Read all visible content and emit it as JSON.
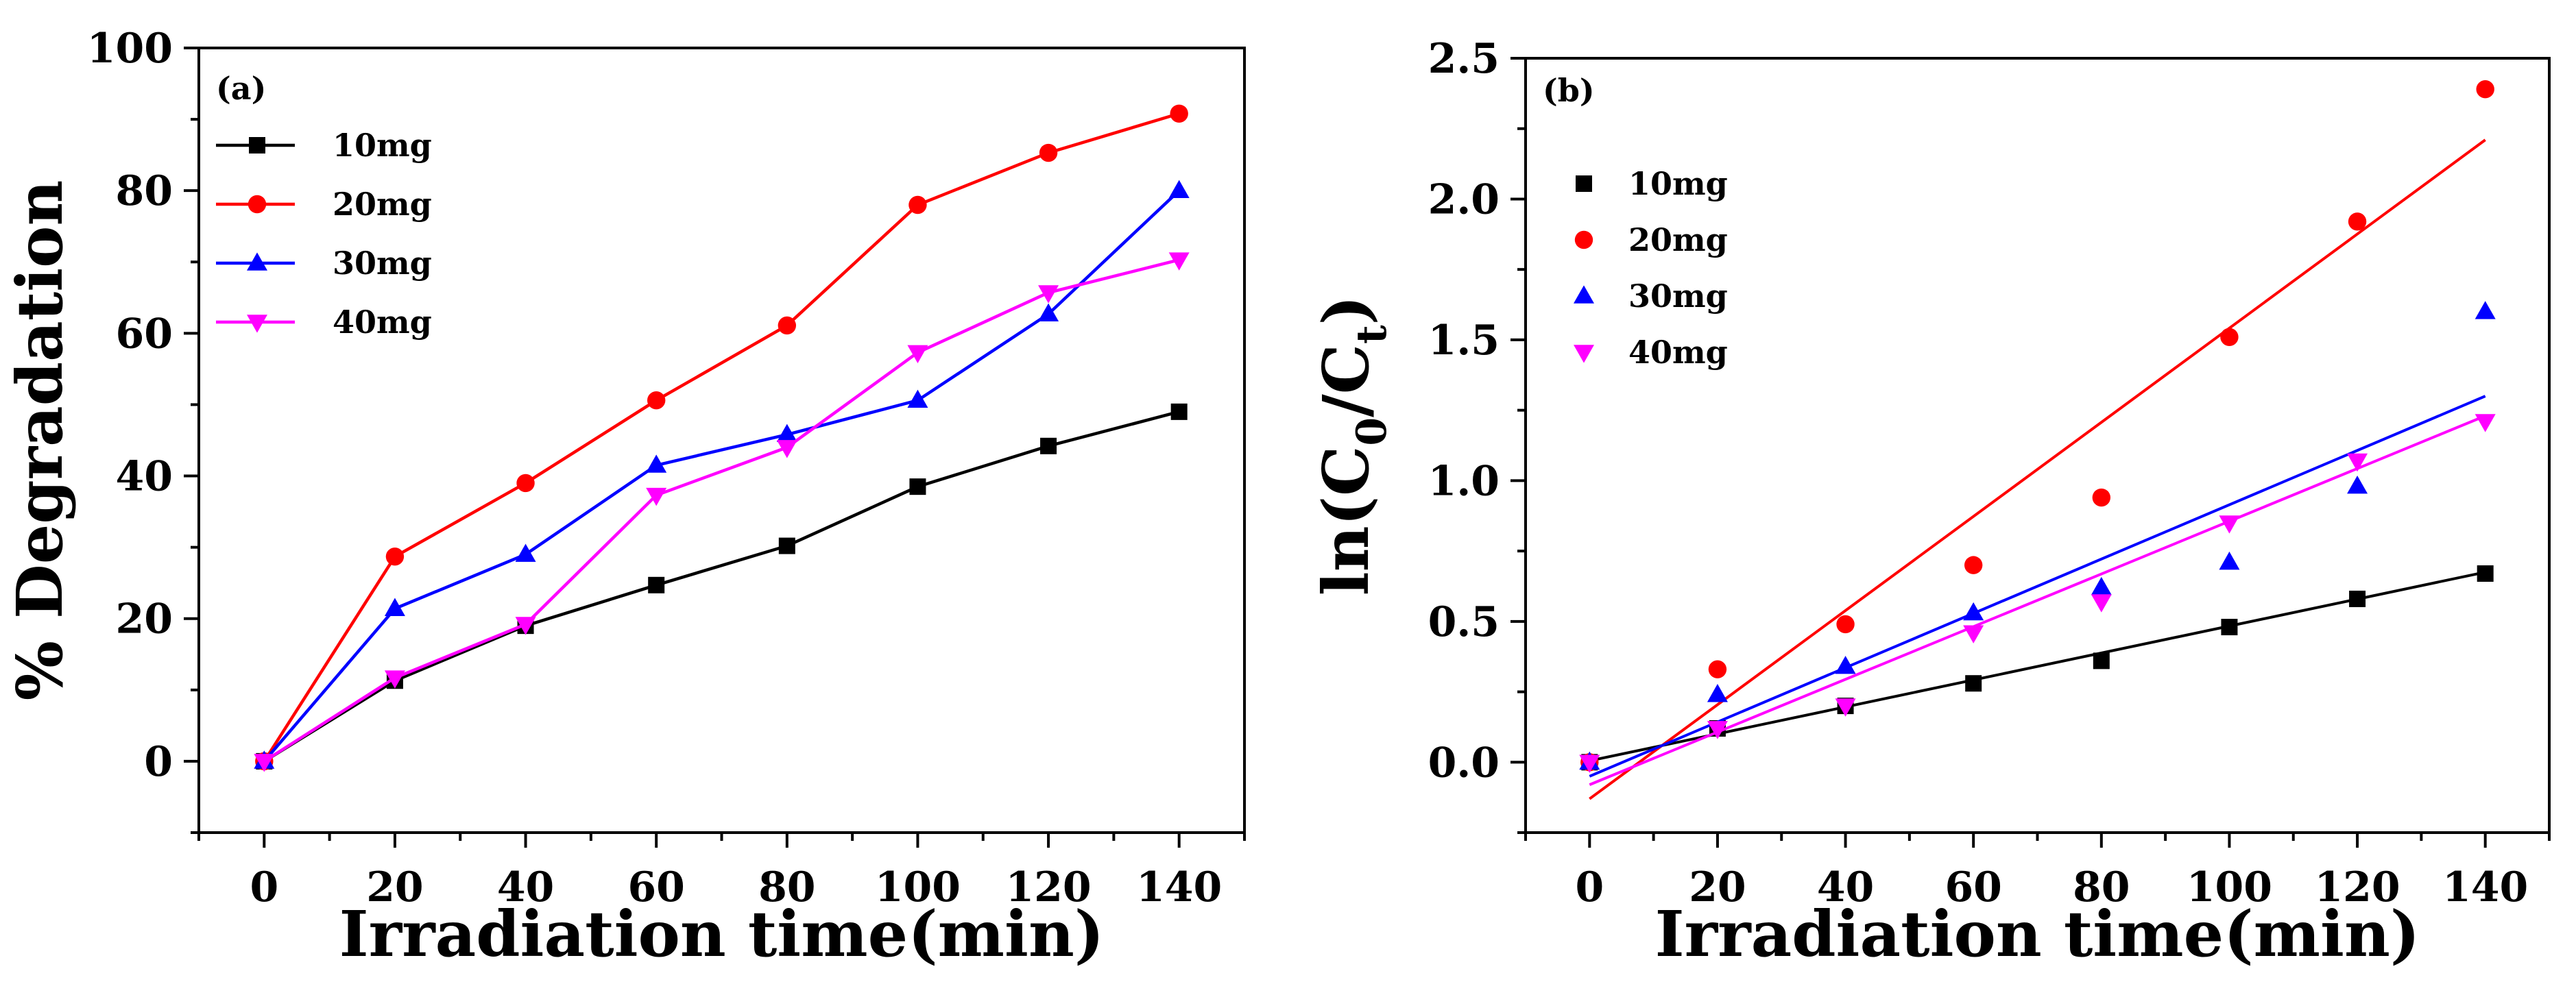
{
  "figure_title": "",
  "chart_data": [
    {
      "panel_label": "(a)",
      "type": "line",
      "title": "",
      "xlabel": "Irradiation time(min)",
      "ylabel": "% Degradation",
      "xlim": [
        -10,
        150
      ],
      "ylim": [
        -10,
        100
      ],
      "xticks": [
        0,
        20,
        40,
        60,
        80,
        100,
        120,
        140
      ],
      "yticks": [
        0,
        20,
        40,
        60,
        80,
        100
      ],
      "x": [
        0,
        20,
        40,
        60,
        80,
        100,
        120,
        140
      ],
      "legend_position": "top-left",
      "series": [
        {
          "name": "10mg",
          "color": "#000000",
          "marker": "square",
          "values": [
            0,
            11.3,
            19,
            24.7,
            30.2,
            38.5,
            44.2,
            49
          ]
        },
        {
          "name": "20mg",
          "color": "#ff0000",
          "marker": "circle",
          "values": [
            0,
            28.7,
            39,
            50.6,
            61.1,
            78,
            85.3,
            90.8
          ]
        },
        {
          "name": "30mg",
          "color": "#0000ff",
          "marker": "triangle",
          "values": [
            0,
            21.4,
            29,
            41.5,
            45.8,
            50.6,
            62.7,
            80
          ]
        },
        {
          "name": "40mg",
          "color": "#ff00ff",
          "marker": "triangle-down",
          "values": [
            0,
            11.7,
            19.2,
            37.3,
            44,
            57.3,
            65.7,
            70.3
          ]
        }
      ]
    },
    {
      "panel_label": "(b)",
      "type": "scatter",
      "title": "",
      "xlabel": "Irradiation time(min)",
      "ylabel": "ln(C0/Ct)",
      "ylabel_parts": {
        "prefix": "ln(C",
        "sub1": "0",
        "mid": "/C",
        "sub2": "t",
        "suffix": ")"
      },
      "xlim": [
        -10,
        150
      ],
      "ylim": [
        -0.25,
        2.5
      ],
      "xticks": [
        0,
        20,
        40,
        60,
        80,
        100,
        120,
        140
      ],
      "yticks": [
        "0.0",
        "0.5",
        "1.0",
        "1.5",
        "2.0",
        "2.5"
      ],
      "x": [
        0,
        20,
        40,
        60,
        80,
        100,
        120,
        140
      ],
      "legend_position": "top-left",
      "series": [
        {
          "name": "10mg",
          "color": "#000000",
          "marker": "square",
          "values": [
            0,
            0.12,
            0.2,
            0.28,
            0.36,
            0.48,
            0.58,
            0.67
          ],
          "fit": {
            "x": [
              0,
              140
            ],
            "y": [
              0.005,
              0.675
            ]
          }
        },
        {
          "name": "20mg",
          "color": "#ff0000",
          "marker": "circle",
          "values": [
            0,
            0.33,
            0.49,
            0.7,
            0.94,
            1.51,
            1.92,
            2.39
          ],
          "fit": {
            "x": [
              0,
              140
            ],
            "y": [
              -0.13,
              2.21
            ]
          }
        },
        {
          "name": "30mg",
          "color": "#0000ff",
          "marker": "triangle",
          "values": [
            0,
            0.24,
            0.34,
            0.53,
            0.62,
            0.71,
            0.98,
            1.6
          ],
          "fit": {
            "x": [
              0,
              140
            ],
            "y": [
              -0.05,
              1.3
            ]
          }
        },
        {
          "name": "40mg",
          "color": "#ff00ff",
          "marker": "triangle-down",
          "values": [
            0,
            0.12,
            0.2,
            0.46,
            0.57,
            0.85,
            1.07,
            1.21
          ],
          "fit": {
            "x": [
              0,
              140
            ],
            "y": [
              -0.08,
              1.23
            ]
          }
        }
      ]
    }
  ]
}
